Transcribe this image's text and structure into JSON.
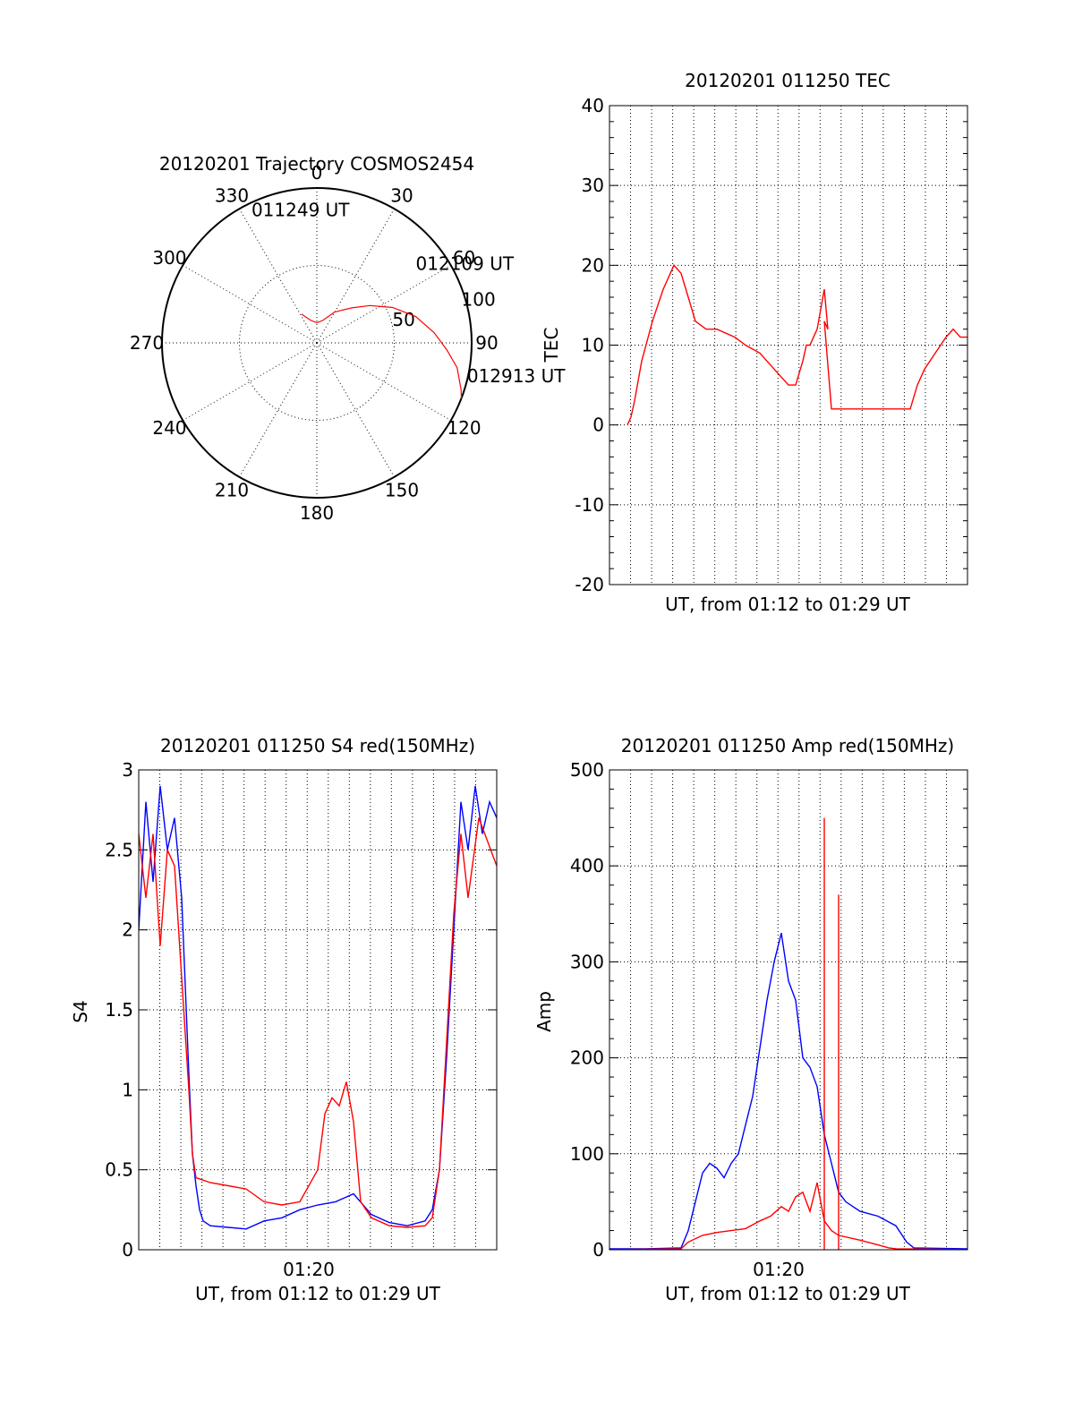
{
  "colors": {
    "red": "#ff0000",
    "blue": "#0000ff",
    "grid": "#000000",
    "frame": "#000000"
  },
  "chart_data": [
    {
      "id": "trajectory",
      "type": "polar",
      "title": "20120201 Trajectory COSMOS2454",
      "angle_labels": [
        "0",
        "30",
        "60",
        "90",
        "120",
        "150",
        "180",
        "210",
        "240",
        "270",
        "300",
        "330"
      ],
      "radial_labels": [
        "50",
        "100"
      ],
      "rmax": 100,
      "series": [
        {
          "color": "red",
          "points": [
            [
              332,
              21
            ],
            [
              345,
              15
            ],
            [
              0,
              13
            ],
            [
              15,
              15
            ],
            [
              30,
              23
            ],
            [
              45,
              32
            ],
            [
              55,
              42
            ],
            [
              65,
              54
            ],
            [
              75,
              66
            ],
            [
              85,
              76
            ],
            [
              93,
              84
            ],
            [
              100,
              92
            ],
            [
              108,
              98
            ],
            [
              111,
              100
            ]
          ]
        }
      ],
      "annotations": [
        {
          "text": "011249 UT",
          "az": 333,
          "r": 93
        },
        {
          "text": "012109 UT",
          "az": 53,
          "r": 80
        },
        {
          "text": "012913 UT",
          "az": 104,
          "r": 100
        }
      ]
    },
    {
      "id": "tec",
      "type": "line",
      "title": "20120201 011250 TEC",
      "xlabel": "UT, from 01:12 to 01:29 UT",
      "ylabel": "TEC",
      "xlim": [
        0,
        1
      ],
      "ylim": [
        -20,
        40
      ],
      "yticks": [
        "-20",
        "-10",
        "0",
        "10",
        "20",
        "30",
        "40"
      ],
      "series": [
        {
          "color": "red",
          "x": [
            0.05,
            0.06,
            0.07,
            0.09,
            0.12,
            0.15,
            0.18,
            0.2,
            0.22,
            0.24,
            0.27,
            0.3,
            0.35,
            0.38,
            0.42,
            0.46,
            0.5,
            0.52,
            0.54,
            0.55,
            0.56,
            0.58,
            0.6,
            0.61,
            0.6,
            0.62,
            0.63,
            0.64,
            0.66,
            0.7,
            0.75,
            0.8,
            0.84,
            0.86,
            0.88,
            0.91,
            0.94,
            0.96,
            0.98,
            1.0
          ],
          "y": [
            0,
            1,
            3,
            8,
            13,
            17,
            20,
            19,
            16,
            13,
            12,
            12,
            11,
            10,
            9,
            7,
            5,
            5,
            8,
            10,
            10,
            12,
            17,
            12,
            13,
            2,
            2,
            2,
            2,
            2,
            2,
            2,
            2,
            5,
            7,
            9,
            11,
            12,
            11,
            11
          ]
        }
      ]
    },
    {
      "id": "s4",
      "type": "line",
      "title": "20120201 011250 S4 red(150MHz)",
      "xlabel": "UT, from 01:12 to 01:29 UT",
      "ylabel": "S4",
      "xtick": "01:20",
      "xlim": [
        0,
        1
      ],
      "ylim": [
        0,
        3
      ],
      "yticks": [
        "0",
        "0.5",
        "1",
        "1.5",
        "2",
        "2.5",
        "3"
      ],
      "series": [
        {
          "color": "blue",
          "x": [
            0.0,
            0.02,
            0.04,
            0.06,
            0.08,
            0.1,
            0.12,
            0.14,
            0.15,
            0.16,
            0.17,
            0.18,
            0.2,
            0.25,
            0.3,
            0.35,
            0.4,
            0.45,
            0.5,
            0.55,
            0.6,
            0.65,
            0.7,
            0.75,
            0.8,
            0.82,
            0.84,
            0.86,
            0.88,
            0.9,
            0.92,
            0.94,
            0.96,
            0.98,
            1.0
          ],
          "y": [
            2.0,
            2.8,
            2.3,
            2.9,
            2.5,
            2.7,
            2.2,
            1.1,
            0.6,
            0.4,
            0.25,
            0.18,
            0.15,
            0.14,
            0.13,
            0.18,
            0.2,
            0.25,
            0.28,
            0.3,
            0.35,
            0.22,
            0.17,
            0.15,
            0.18,
            0.25,
            0.5,
            1.2,
            2.0,
            2.8,
            2.5,
            2.9,
            2.6,
            2.8,
            2.7
          ]
        },
        {
          "color": "red",
          "x": [
            0.0,
            0.02,
            0.04,
            0.06,
            0.08,
            0.1,
            0.12,
            0.14,
            0.15,
            0.16,
            0.2,
            0.25,
            0.3,
            0.35,
            0.4,
            0.45,
            0.5,
            0.52,
            0.54,
            0.56,
            0.58,
            0.6,
            0.62,
            0.65,
            0.7,
            0.75,
            0.8,
            0.82,
            0.84,
            0.86,
            0.88,
            0.9,
            0.92,
            0.95,
            1.0
          ],
          "y": [
            2.6,
            2.2,
            2.6,
            1.9,
            2.5,
            2.4,
            1.7,
            1.0,
            0.6,
            0.45,
            0.42,
            0.4,
            0.38,
            0.3,
            0.28,
            0.3,
            0.5,
            0.85,
            0.95,
            0.9,
            1.05,
            0.8,
            0.3,
            0.2,
            0.15,
            0.14,
            0.15,
            0.2,
            0.5,
            1.3,
            2.1,
            2.6,
            2.2,
            2.7,
            2.4
          ]
        }
      ]
    },
    {
      "id": "amp",
      "type": "line",
      "title": "20120201 011250 Amp red(150MHz)",
      "xlabel": "UT, from 01:12 to 01:29 UT",
      "ylabel": "Amp",
      "xtick": "01:20",
      "xlim": [
        0,
        1
      ],
      "ylim": [
        0,
        500
      ],
      "yticks": [
        "0",
        "100",
        "200",
        "300",
        "400",
        "500"
      ],
      "series": [
        {
          "color": "blue",
          "x": [
            0.0,
            0.1,
            0.2,
            0.22,
            0.24,
            0.26,
            0.28,
            0.3,
            0.32,
            0.34,
            0.36,
            0.38,
            0.4,
            0.42,
            0.44,
            0.46,
            0.48,
            0.5,
            0.52,
            0.54,
            0.56,
            0.58,
            0.6,
            0.62,
            0.64,
            0.66,
            0.7,
            0.75,
            0.8,
            0.83,
            0.85,
            1.0
          ],
          "y": [
            1,
            1,
            2,
            20,
            50,
            80,
            90,
            85,
            75,
            90,
            100,
            130,
            160,
            210,
            260,
            300,
            330,
            280,
            260,
            200,
            190,
            170,
            120,
            90,
            60,
            50,
            40,
            35,
            25,
            8,
            2,
            1
          ]
        },
        {
          "color": "red",
          "x": [
            0.0,
            0.2,
            0.22,
            0.26,
            0.3,
            0.34,
            0.38,
            0.42,
            0.45,
            0.48,
            0.5,
            0.52,
            0.54,
            0.56,
            0.58,
            0.6,
            0.62,
            0.64,
            0.7,
            0.75,
            0.78,
            0.8,
            1.0
          ],
          "y": [
            0,
            1,
            8,
            15,
            18,
            20,
            22,
            30,
            35,
            45,
            40,
            55,
            60,
            40,
            70,
            30,
            20,
            15,
            10,
            5,
            2,
            1,
            0
          ]
        }
      ],
      "spikes": [
        {
          "color": "red",
          "x": 0.6,
          "y": 450
        },
        {
          "color": "red",
          "x": 0.64,
          "y": 370
        }
      ]
    }
  ]
}
